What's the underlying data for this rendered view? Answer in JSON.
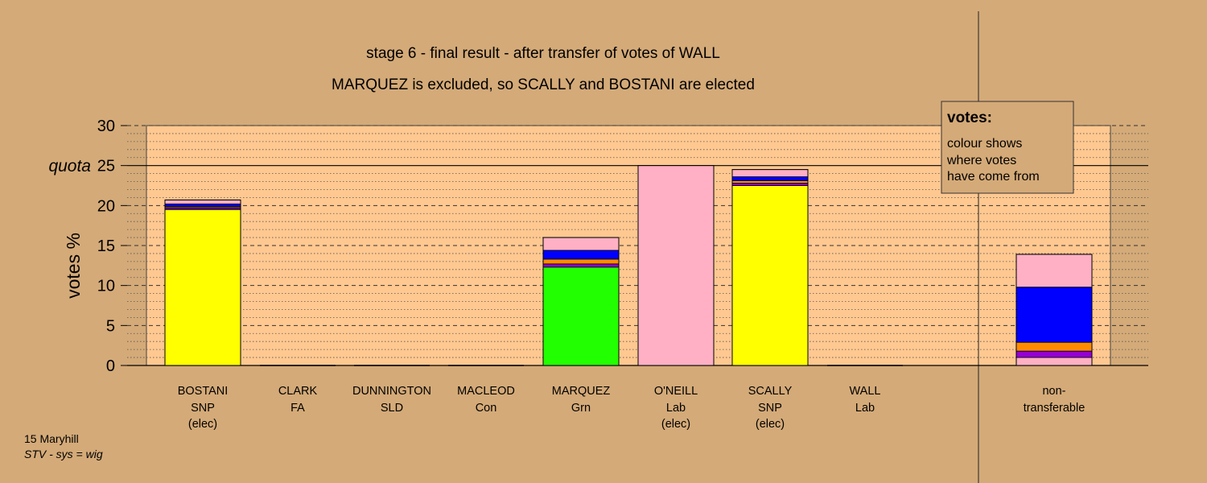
{
  "chart_data": {
    "type": "bar",
    "stacked": true,
    "title": "stage 6 - final result - after transfer of votes of WALL",
    "subtitle": "MARQUEZ is excluded, so SCALLY and BOSTANI are elected",
    "ylabel": "votes %",
    "ylim": [
      0,
      30
    ],
    "yticks": [
      0,
      5,
      10,
      15,
      20,
      25,
      30
    ],
    "quota": {
      "label": "quota",
      "value": 25
    },
    "grid": true,
    "colors": {
      "background": "#d4aa78",
      "plot_area": "#ffc890",
      "snp": "#ffff00",
      "grn": "#22ff00",
      "lab": "#ffb0c4",
      "sld": "#ff8c00",
      "fa": "#9400d3",
      "con": "#0000ff",
      "non_transferable": "#000000"
    },
    "candidates": [
      {
        "name": "BOSTANI",
        "party": "SNP",
        "status": "(elec)",
        "segments": [
          {
            "color": "snp",
            "value": 19.5
          },
          {
            "color": "fa",
            "value": 0.2
          },
          {
            "color": "sld",
            "value": 0.15
          },
          {
            "color": "con",
            "value": 0.35
          },
          {
            "color": "lab",
            "value": 0.5
          }
        ]
      },
      {
        "name": "CLARK",
        "party": "FA",
        "status": "",
        "segments": []
      },
      {
        "name": "DUNNINGTON",
        "party": "SLD",
        "status": "",
        "segments": []
      },
      {
        "name": "MACLEOD",
        "party": "Con",
        "status": "",
        "segments": []
      },
      {
        "name": "MARQUEZ",
        "party": "Grn",
        "status": "",
        "segments": [
          {
            "color": "grn",
            "value": 12.3
          },
          {
            "color": "fa",
            "value": 0.4
          },
          {
            "color": "sld",
            "value": 0.6
          },
          {
            "color": "con",
            "value": 1.1
          },
          {
            "color": "lab",
            "value": 1.6
          }
        ]
      },
      {
        "name": "O'NEILL",
        "party": "Lab",
        "status": "(elec)",
        "segments": [
          {
            "color": "lab",
            "value": 25.0
          }
        ]
      },
      {
        "name": "SCALLY",
        "party": "SNP",
        "status": "(elec)",
        "segments": [
          {
            "color": "snp",
            "value": 22.5
          },
          {
            "color": "fa",
            "value": 0.3
          },
          {
            "color": "sld",
            "value": 0.3
          },
          {
            "color": "con",
            "value": 0.5
          },
          {
            "color": "lab",
            "value": 0.9
          }
        ]
      },
      {
        "name": "WALL",
        "party": "Lab",
        "status": "",
        "segments": []
      }
    ],
    "non_transferable": {
      "line1": "non-",
      "line2": "transferable",
      "segments": [
        {
          "color": "lab",
          "value": 1.0
        },
        {
          "color": "fa",
          "value": 0.8
        },
        {
          "color": "sld",
          "value": 1.1
        },
        {
          "color": "con",
          "value": 6.9
        },
        {
          "color": "lab",
          "value": 4.1
        }
      ]
    },
    "legend": {
      "position": "top-right",
      "title": "votes:",
      "lines": [
        "colour shows",
        "where votes",
        "have come from"
      ]
    },
    "footer": {
      "ward": "15 Maryhill",
      "system": "STV - sys = wig"
    }
  }
}
